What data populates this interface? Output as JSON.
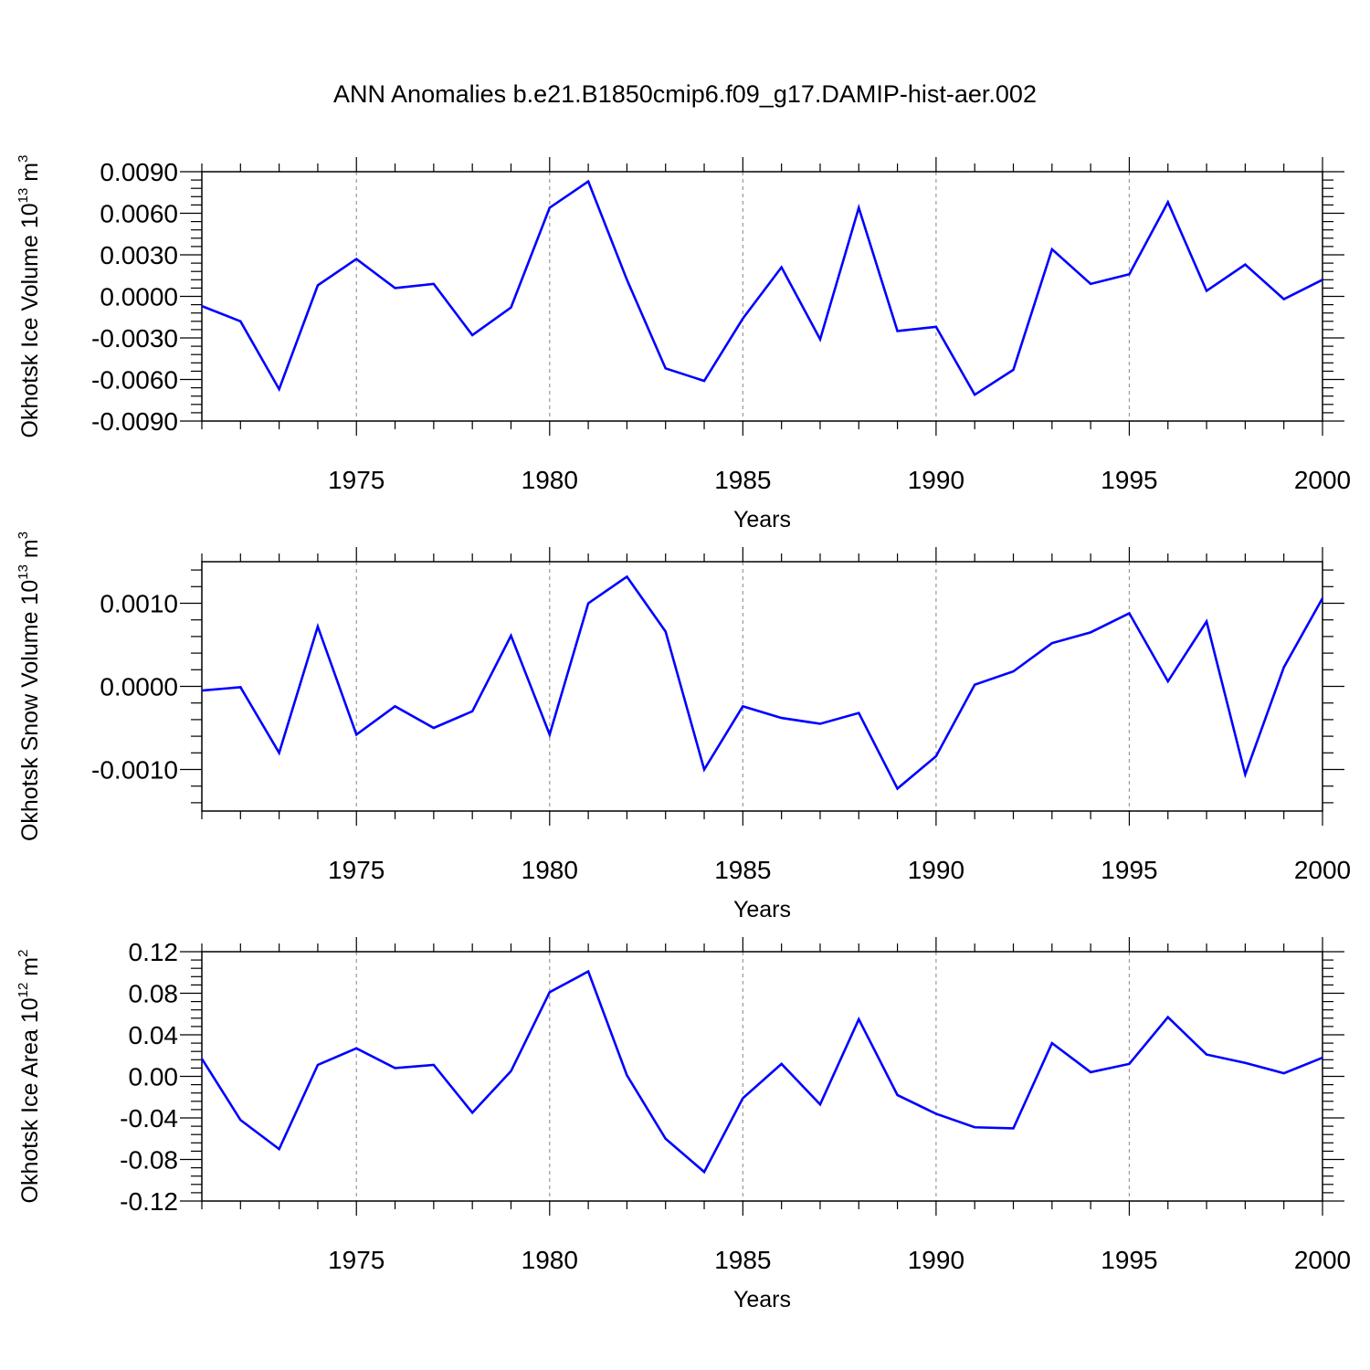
{
  "figure": {
    "title": "ANN Anomalies b.e21.B1850cmip6.f09_g17.DAMIP-hist-aer.002"
  },
  "chart_data": [
    {
      "type": "line",
      "id": "ice-volume",
      "title": "",
      "xlabel": "Years",
      "ylabel_main": "Okhotsk Ice Volume 10",
      "ylabel_sup": "13",
      "ylabel_unit": " m",
      "ylabel_unit_sup": "3",
      "xlim": [
        1971,
        2000
      ],
      "ylim": [
        -0.009,
        0.009
      ],
      "xticks": [
        "1975",
        "1980",
        "1985",
        "1990",
        "1995",
        "2000"
      ],
      "yticks": [
        "0.0090",
        "0.0060",
        "0.0030",
        "0.0000",
        "-0.0030",
        "-0.0060",
        "-0.0090"
      ],
      "x": [
        1971,
        1972,
        1973,
        1974,
        1975,
        1976,
        1977,
        1978,
        1979,
        1980,
        1981,
        1982,
        1983,
        1984,
        1985,
        1986,
        1987,
        1988,
        1989,
        1990,
        1991,
        1992,
        1993,
        1994,
        1995,
        1996,
        1997,
        1998,
        1999,
        2000
      ],
      "values": [
        -0.0007,
        -0.0018,
        -0.0067,
        0.0008,
        0.0027,
        0.0006,
        0.0009,
        -0.0028,
        -0.0008,
        0.0064,
        0.0083,
        0.0012,
        -0.0052,
        -0.0061,
        -0.0016,
        0.0021,
        -0.0031,
        0.0064,
        -0.0025,
        -0.0022,
        -0.0071,
        -0.0053,
        0.0034,
        0.0009,
        0.0016,
        0.0068,
        0.0004,
        0.0023,
        -0.0002,
        0.0012
      ],
      "color": "#0000ff"
    },
    {
      "type": "line",
      "id": "snow-volume",
      "title": "",
      "xlabel": "Years",
      "ylabel_main": "Okhotsk Snow Volume 10",
      "ylabel_sup": "13",
      "ylabel_unit": " m",
      "ylabel_unit_sup": "3",
      "xlim": [
        1971,
        2000
      ],
      "ylim": [
        -0.0015,
        0.0015
      ],
      "xticks": [
        "1975",
        "1980",
        "1985",
        "1990",
        "1995",
        "2000"
      ],
      "yticks": [
        "0.0010",
        "0.0000",
        "-0.0010"
      ],
      "x": [
        1971,
        1972,
        1973,
        1974,
        1975,
        1976,
        1977,
        1978,
        1979,
        1980,
        1981,
        1982,
        1983,
        1984,
        1985,
        1986,
        1987,
        1988,
        1989,
        1990,
        1991,
        1992,
        1993,
        1994,
        1995,
        1996,
        1997,
        1998,
        1999,
        2000
      ],
      "values": [
        -5e-05,
        -1e-05,
        -0.0008,
        0.00072,
        -0.00058,
        -0.00024,
        -0.0005,
        -0.0003,
        0.00061,
        -0.00058,
        0.001,
        0.00132,
        0.00066,
        -0.001,
        -0.00024,
        -0.00038,
        -0.00045,
        -0.00032,
        -0.00123,
        -0.00084,
        2e-05,
        0.00018,
        0.00052,
        0.00065,
        0.00088,
        6e-05,
        0.00078,
        -0.00106,
        0.00023,
        0.00106
      ],
      "color": "#0000ff"
    },
    {
      "type": "line",
      "id": "ice-area",
      "title": "",
      "xlabel": "Years",
      "ylabel_main": "Okhotsk Ice Area 10",
      "ylabel_sup": "12",
      "ylabel_unit": " m",
      "ylabel_unit_sup": "2",
      "xlim": [
        1971,
        2000
      ],
      "ylim": [
        -0.12,
        0.12
      ],
      "xticks": [
        "1975",
        "1980",
        "1985",
        "1990",
        "1995",
        "2000"
      ],
      "yticks": [
        "0.12",
        "0.08",
        "0.04",
        "0.00",
        "-0.04",
        "-0.08",
        "-0.12"
      ],
      "x": [
        1971,
        1972,
        1973,
        1974,
        1975,
        1976,
        1977,
        1978,
        1979,
        1980,
        1981,
        1982,
        1983,
        1984,
        1985,
        1986,
        1987,
        1988,
        1989,
        1990,
        1991,
        1992,
        1993,
        1994,
        1995,
        1996,
        1997,
        1998,
        1999,
        2000
      ],
      "values": [
        0.017,
        -0.042,
        -0.07,
        0.011,
        0.027,
        0.008,
        0.011,
        -0.035,
        0.005,
        0.081,
        0.101,
        0.001,
        -0.06,
        -0.092,
        -0.021,
        0.012,
        -0.027,
        0.055,
        -0.018,
        -0.036,
        -0.049,
        -0.05,
        0.032,
        0.004,
        0.012,
        0.057,
        0.021,
        0.013,
        0.003,
        0.018
      ],
      "color": "#0000ff"
    }
  ]
}
